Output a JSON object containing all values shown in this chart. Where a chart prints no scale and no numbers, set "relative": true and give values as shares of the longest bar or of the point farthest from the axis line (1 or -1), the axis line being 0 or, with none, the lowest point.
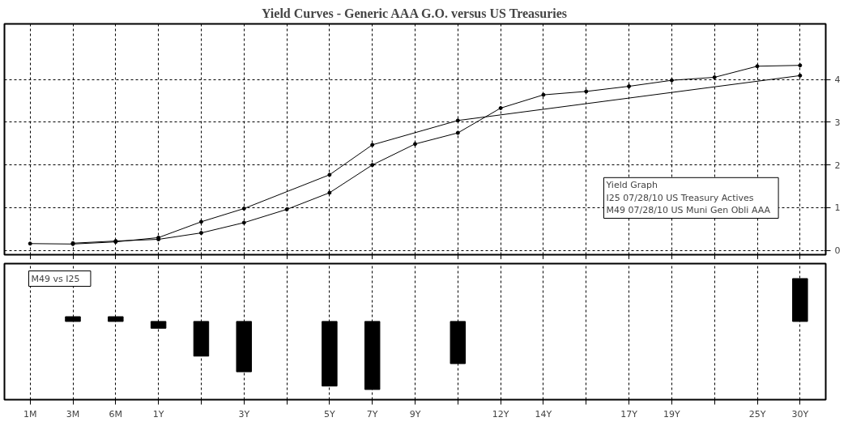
{
  "chart_data": [
    {
      "type": "line",
      "title": "Yield Curves - Generic AAA G.O. versus US Treasuries",
      "series": [
        {
          "color": "#000000",
          "values": [
            0.16,
            0.15,
            0.2,
            0.3,
            0.67,
            0.98,
            null,
            1.77,
            2.47,
            null,
            3.04,
            null,
            null,
            null,
            null,
            null,
            null,
            null,
            4.09
          ]
        },
        {
          "color": "#000000",
          "values": [
            null,
            0.17,
            0.22,
            0.26,
            0.41,
            0.65,
            0.96,
            1.35,
            2.0,
            2.49,
            2.75,
            3.33,
            3.64,
            3.72,
            3.84,
            3.98,
            4.05,
            4.31,
            4.33
          ]
        }
      ],
      "ylim": [
        -0.1,
        5.3
      ],
      "yticks": [
        0,
        1,
        2,
        3,
        4
      ],
      "grid": true,
      "marker": "circle",
      "line_style": "solid",
      "tick_labels": "y",
      "annotations": [
        "Yield Graph",
        "I25 07/28/10   US Treasury Actives",
        "M49 07/28/10   US Muni Gen Obli AAA"
      ]
    },
    {
      "type": "bar",
      "relative": true,
      "categories": [
        "1M",
        "3M",
        "6M",
        "1Y",
        null,
        "3Y",
        null,
        "5Y",
        "7Y",
        "9Y",
        null,
        "12Y",
        "14Y",
        null,
        "17Y",
        "19Y",
        null,
        "25Y",
        "30Y"
      ],
      "values": [
        null,
        0.07,
        0.07,
        -0.1,
        -0.51,
        -0.74,
        null,
        -0.95,
        -1,
        null,
        -0.62,
        null,
        null,
        null,
        null,
        null,
        null,
        null,
        0.63
      ],
      "color": "#000000",
      "grid": "x",
      "tick_labels": "x",
      "annotations": [
        "M49    vs I25"
      ]
    }
  ]
}
